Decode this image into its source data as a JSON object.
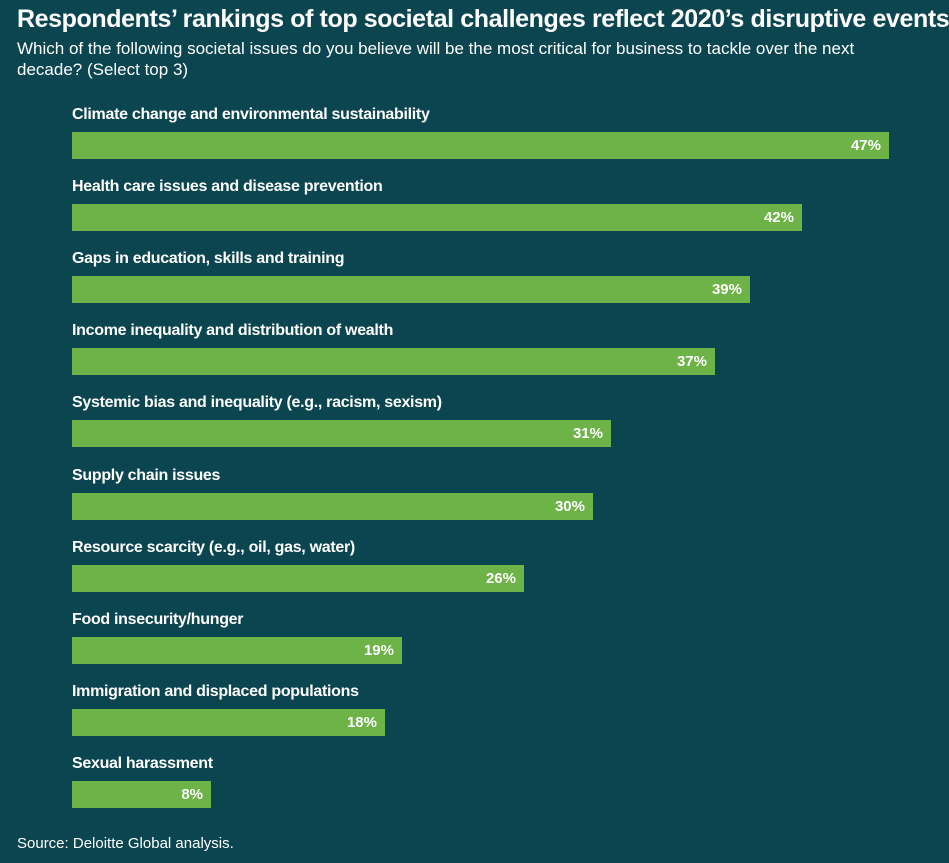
{
  "title": "Respondents’ rankings of top societal challenges reflect 2020’s disruptive events",
  "subtitle": "Which of the following societal issues do you believe will be the most critical for business to tackle over the next decade? (Select top 3)",
  "source": "Source: Deloitte Global analysis.",
  "colors": {
    "background": "#0b4650",
    "bar": "#6db347",
    "text": "#ffffff"
  },
  "chart_data": {
    "type": "bar",
    "orientation": "horizontal",
    "categories": [
      "Climate change and environmental sustainability",
      "Health care issues and disease prevention",
      "Gaps in education, skills and training",
      "Income inequality and distribution of wealth",
      "Systemic bias and inequality (e.g., racism, sexism)",
      "Supply chain issues",
      "Resource scarcity (e.g., oil, gas, water)",
      "Food insecurity/hunger",
      "Immigration and displaced populations",
      "Sexual harassment"
    ],
    "values": [
      47,
      42,
      39,
      37,
      31,
      30,
      26,
      19,
      18,
      8
    ],
    "value_labels": [
      "47%",
      "42%",
      "39%",
      "37%",
      "31%",
      "30%",
      "26%",
      "19%",
      "18%",
      "8%"
    ],
    "unit": "%",
    "xlim": [
      0,
      47
    ],
    "grid": false,
    "legend": "none"
  }
}
